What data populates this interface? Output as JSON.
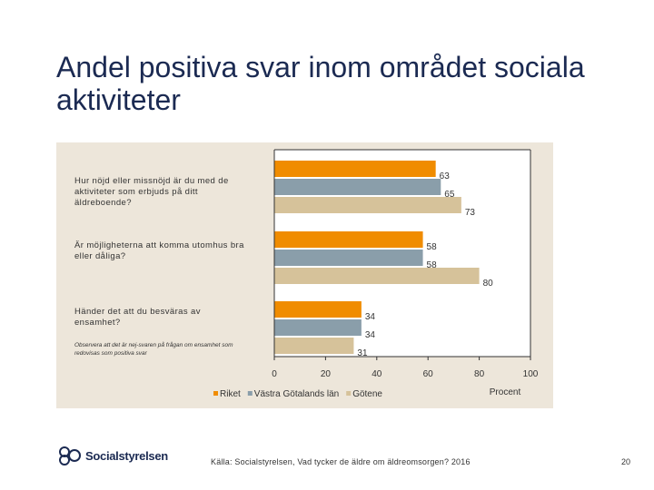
{
  "title": "Andel positiva svar inom området sociala aktiviteter",
  "questions": [
    "Hur nöjd eller missnöjd är du med de aktiviteter som erbjuds på ditt äldreboende?",
    "Är möjligheterna att komma utomhus bra eller dåliga?",
    "Händer det att du besväras av ensamhet?"
  ],
  "note": "Observera att det är nej-svaren på frågan om ensamhet som redovisas som positiva svar",
  "footer": {
    "source": "Källa: Socialstyrelsen, Vad tycker de äldre om äldreomsorgen? 2016",
    "page": "20",
    "logo": "Socialstyrelsen"
  },
  "colors": {
    "Riket": "#f08c00",
    "Västra Götalands län": "#8a9eaa",
    "Götene": "#d6c29a"
  },
  "chart_data": {
    "type": "bar",
    "orientation": "horizontal",
    "categories": [
      "Hur nöjd eller missnöjd är du med de aktiviteter som erbjuds på ditt äldreboende?",
      "Är möjligheterna att komma utomhus bra eller dåliga?",
      "Händer det att du besväras av ensamhet?"
    ],
    "series": [
      {
        "name": "Riket",
        "values": [
          63,
          58,
          34
        ]
      },
      {
        "name": "Västra Götalands län",
        "values": [
          65,
          58,
          34
        ]
      },
      {
        "name": "Götene",
        "values": [
          73,
          80,
          31
        ]
      }
    ],
    "xlim": [
      0,
      100
    ],
    "xticks": [
      0,
      20,
      40,
      60,
      80,
      100
    ],
    "xlabel": "Procent",
    "legend": "bottom"
  }
}
